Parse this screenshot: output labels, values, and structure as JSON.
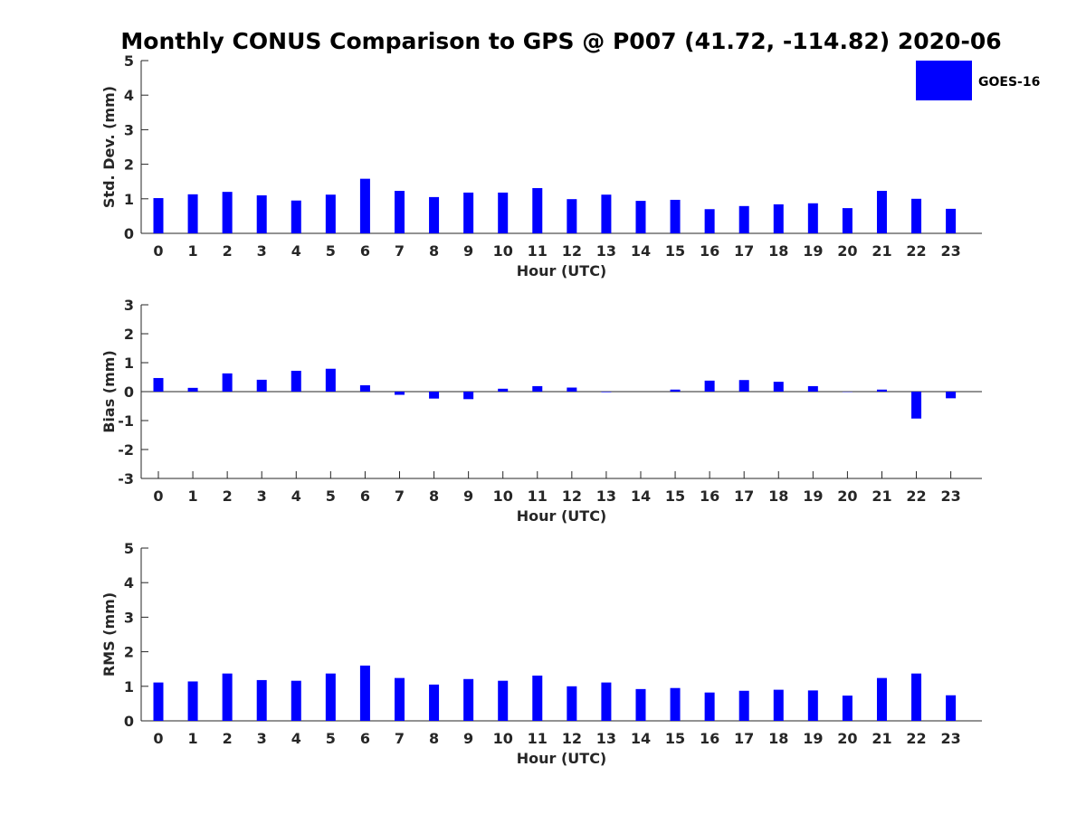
{
  "figure": {
    "title": "Monthly CONUS Comparison to GPS @ P007 (41.72, -114.82) 2020-06",
    "bar_color": "#0000ff",
    "legend": {
      "label": "GOES-16",
      "color": "#0000ff"
    }
  },
  "chart_data": [
    {
      "type": "bar",
      "name": "stddev",
      "title": "",
      "xlabel": "Hour (UTC)",
      "ylabel": "Std. Dev. (mm)",
      "ylim": [
        0,
        5
      ],
      "yticks": [
        0,
        1,
        2,
        3,
        4,
        5
      ],
      "categories": [
        "0",
        "1",
        "2",
        "3",
        "4",
        "5",
        "6",
        "7",
        "8",
        "9",
        "10",
        "11",
        "12",
        "13",
        "14",
        "15",
        "16",
        "17",
        "18",
        "19",
        "20",
        "21",
        "22",
        "23"
      ],
      "series": [
        {
          "name": "GOES-16",
          "values": [
            1.02,
            1.13,
            1.2,
            1.1,
            0.95,
            1.12,
            1.58,
            1.23,
            1.05,
            1.18,
            1.18,
            1.31,
            0.99,
            1.12,
            0.94,
            0.97,
            0.7,
            0.79,
            0.84,
            0.87,
            0.73,
            1.23,
            1.0,
            0.71
          ]
        }
      ]
    },
    {
      "type": "bar",
      "name": "bias",
      "title": "",
      "xlabel": "Hour (UTC)",
      "ylabel": "Bias (mm)",
      "ylim": [
        -3,
        3
      ],
      "yticks": [
        -3,
        -2,
        -1,
        0,
        1,
        2,
        3
      ],
      "categories": [
        "0",
        "1",
        "2",
        "3",
        "4",
        "5",
        "6",
        "7",
        "8",
        "9",
        "10",
        "11",
        "12",
        "13",
        "14",
        "15",
        "16",
        "17",
        "18",
        "19",
        "20",
        "21",
        "22",
        "23"
      ],
      "series": [
        {
          "name": "GOES-16",
          "values": [
            0.47,
            0.13,
            0.63,
            0.41,
            0.72,
            0.79,
            0.22,
            -0.11,
            -0.24,
            -0.26,
            0.1,
            0.19,
            0.14,
            -0.02,
            0.0,
            0.07,
            0.38,
            0.4,
            0.34,
            0.19,
            -0.01,
            0.07,
            -0.93,
            -0.23
          ]
        }
      ]
    },
    {
      "type": "bar",
      "name": "rms",
      "title": "",
      "xlabel": "Hour (UTC)",
      "ylabel": "RMS (mm)",
      "ylim": [
        0,
        5
      ],
      "yticks": [
        0,
        1,
        2,
        3,
        4,
        5
      ],
      "categories": [
        "0",
        "1",
        "2",
        "3",
        "4",
        "5",
        "6",
        "7",
        "8",
        "9",
        "10",
        "11",
        "12",
        "13",
        "14",
        "15",
        "16",
        "17",
        "18",
        "19",
        "20",
        "21",
        "22",
        "23"
      ],
      "series": [
        {
          "name": "GOES-16",
          "values": [
            1.11,
            1.14,
            1.37,
            1.18,
            1.16,
            1.37,
            1.6,
            1.24,
            1.05,
            1.21,
            1.16,
            1.31,
            1.0,
            1.11,
            0.92,
            0.95,
            0.82,
            0.87,
            0.9,
            0.88,
            0.73,
            1.24,
            1.37,
            0.74
          ]
        }
      ]
    }
  ]
}
